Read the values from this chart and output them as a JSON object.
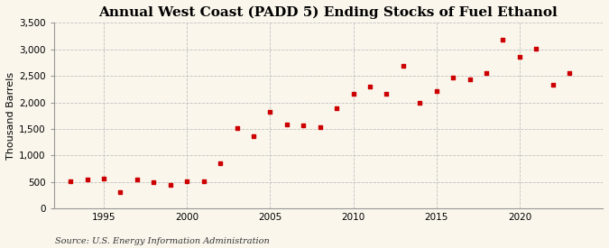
{
  "title": "Annual West Coast (PADD 5) Ending Stocks of Fuel Ethanol",
  "ylabel": "Thousand Barrels",
  "source": "Source: U.S. Energy Information Administration",
  "background_color": "#faf6ec",
  "marker_color": "#cc0000",
  "years": [
    1993,
    1994,
    1995,
    1996,
    1997,
    1998,
    1999,
    2000,
    2001,
    2002,
    2003,
    2004,
    2005,
    2006,
    2007,
    2008,
    2009,
    2010,
    2011,
    2012,
    2013,
    2014,
    2015,
    2016,
    2017,
    2018,
    2019,
    2020,
    2021,
    2022,
    2023
  ],
  "values": [
    510,
    545,
    560,
    315,
    555,
    490,
    445,
    510,
    510,
    850,
    1510,
    1365,
    1820,
    1590,
    1560,
    1540,
    1890,
    2170,
    2300,
    2165,
    2685,
    2000,
    2215,
    2470,
    2440,
    2545,
    3175,
    2860,
    3010,
    2340,
    2545
  ],
  "xlim": [
    1992,
    2025
  ],
  "ylim": [
    0,
    3500
  ],
  "yticks": [
    0,
    500,
    1000,
    1500,
    2000,
    2500,
    3000,
    3500
  ],
  "xticks": [
    1995,
    2000,
    2005,
    2010,
    2015,
    2020
  ],
  "grid_color": "#bbbbbb",
  "title_fontsize": 11,
  "label_fontsize": 8,
  "tick_fontsize": 7.5,
  "source_fontsize": 7
}
